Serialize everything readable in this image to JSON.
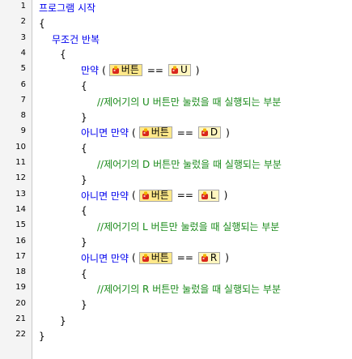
{
  "colors": {
    "keyword": "#0000ee",
    "comment": "#1a8a1a",
    "gutter": "#f4f4f4",
    "chip_bg": "#fff6c0"
  },
  "lines": [
    {
      "no": "1",
      "parts": [
        {
          "t": "kw",
          "v": "프로그램 시작"
        }
      ]
    },
    {
      "no": "2",
      "parts": [
        {
          "t": "txt",
          "v": "{"
        }
      ]
    },
    {
      "no": "3",
      "parts": [
        {
          "t": "kw",
          "v": "무조건 반복"
        }
      ]
    },
    {
      "no": "4",
      "parts": [
        {
          "t": "txt",
          "v": "{"
        }
      ]
    },
    {
      "no": "5",
      "parts": [
        {
          "t": "kw",
          "v": "만약"
        },
        {
          "t": "txt",
          "v": "("
        },
        {
          "t": "chip",
          "v": "버튼",
          "icon": "button-icon"
        },
        {
          "t": "txt",
          "v": "=="
        },
        {
          "t": "chip",
          "v": "U",
          "icon": "button-icon"
        },
        {
          "t": "txt",
          "v": ")"
        }
      ]
    },
    {
      "no": "6",
      "parts": [
        {
          "t": "txt",
          "v": "{"
        }
      ]
    },
    {
      "no": "7",
      "parts": [
        {
          "t": "cm",
          "v": "//제어기의 U 버튼만 눌렀을 때 실행되는 부분"
        }
      ]
    },
    {
      "no": "8",
      "parts": [
        {
          "t": "txt",
          "v": "}"
        }
      ]
    },
    {
      "no": "9",
      "parts": [
        {
          "t": "kw",
          "v": "아니면 만약"
        },
        {
          "t": "txt",
          "v": "("
        },
        {
          "t": "chip",
          "v": "버튼",
          "icon": "button-icon"
        },
        {
          "t": "txt",
          "v": "=="
        },
        {
          "t": "chip",
          "v": "D",
          "icon": "button-icon"
        },
        {
          "t": "txt",
          "v": ")"
        }
      ]
    },
    {
      "no": "10",
      "parts": [
        {
          "t": "txt",
          "v": "{"
        }
      ]
    },
    {
      "no": "11",
      "parts": [
        {
          "t": "cm",
          "v": "//제어기의 D 버튼만 눌렀을 때 실행되는 부분"
        }
      ]
    },
    {
      "no": "12",
      "parts": [
        {
          "t": "txt",
          "v": "}"
        }
      ]
    },
    {
      "no": "13",
      "parts": [
        {
          "t": "kw",
          "v": "아니면 만약"
        },
        {
          "t": "txt",
          "v": "("
        },
        {
          "t": "chip",
          "v": "버튼",
          "icon": "button-icon"
        },
        {
          "t": "txt",
          "v": "=="
        },
        {
          "t": "chip",
          "v": "L",
          "icon": "button-icon"
        },
        {
          "t": "txt",
          "v": ")"
        }
      ]
    },
    {
      "no": "14",
      "parts": [
        {
          "t": "txt",
          "v": "{"
        }
      ]
    },
    {
      "no": "15",
      "parts": [
        {
          "t": "cm",
          "v": "//제어기의 L 버튼만 눌렀을 때 실행되는 부분"
        }
      ]
    },
    {
      "no": "16",
      "parts": [
        {
          "t": "txt",
          "v": "}"
        }
      ]
    },
    {
      "no": "17",
      "parts": [
        {
          "t": "kw",
          "v": "아니면 만약"
        },
        {
          "t": "txt",
          "v": "("
        },
        {
          "t": "chip",
          "v": "버튼",
          "icon": "button-icon"
        },
        {
          "t": "txt",
          "v": "=="
        },
        {
          "t": "chip",
          "v": "R",
          "icon": "button-icon"
        },
        {
          "t": "txt",
          "v": ")"
        }
      ]
    },
    {
      "no": "18",
      "parts": [
        {
          "t": "txt",
          "v": "{"
        }
      ]
    },
    {
      "no": "19",
      "parts": [
        {
          "t": "cm",
          "v": "//제어기의 R 버튼만 눌렀을 때 실행되는 부분"
        }
      ]
    },
    {
      "no": "20",
      "parts": [
        {
          "t": "txt",
          "v": "}"
        }
      ]
    },
    {
      "no": "21",
      "parts": [
        {
          "t": "txt",
          "v": "}"
        }
      ]
    },
    {
      "no": "22",
      "parts": [
        {
          "t": "txt",
          "v": "}"
        }
      ]
    }
  ]
}
